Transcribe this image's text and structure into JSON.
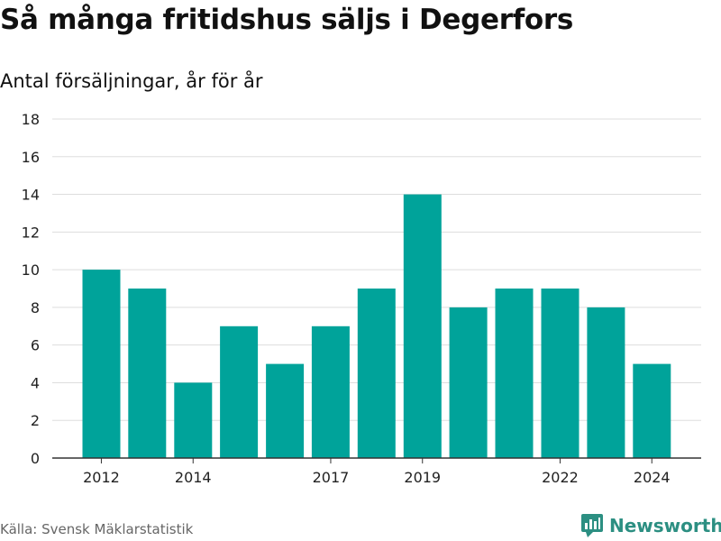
{
  "title": "Så många fritidshus säljs i Degerfors",
  "subtitle": "Antal försäljningar, år för år",
  "source": "Källa: Svensk Mäklarstatistik",
  "brand": {
    "name": "Newsworthy",
    "color": "#2c8f82",
    "icon": "newsworthy-logo-icon"
  },
  "chart_data": {
    "type": "bar",
    "title": "Så många fritidshus säljs i Degerfors",
    "subtitle": "Antal försäljningar, år för år",
    "categories": [
      2012,
      2013,
      2014,
      2015,
      2016,
      2017,
      2018,
      2019,
      2020,
      2021,
      2022,
      2023,
      2024
    ],
    "values": [
      10,
      9,
      4,
      7,
      5,
      7,
      9,
      14,
      8,
      9,
      9,
      8,
      5
    ],
    "x_tick_labels": [
      "2012",
      "2014",
      "2017",
      "2019",
      "2022",
      "2024"
    ],
    "y_ticks": [
      0,
      2,
      4,
      6,
      8,
      10,
      12,
      14,
      16,
      18
    ],
    "ylim": [
      0,
      18
    ],
    "xlabel": "",
    "ylabel": "",
    "grid": true,
    "bar_color": "#00a39a",
    "grid_color": "#dddddd",
    "legend": false
  }
}
